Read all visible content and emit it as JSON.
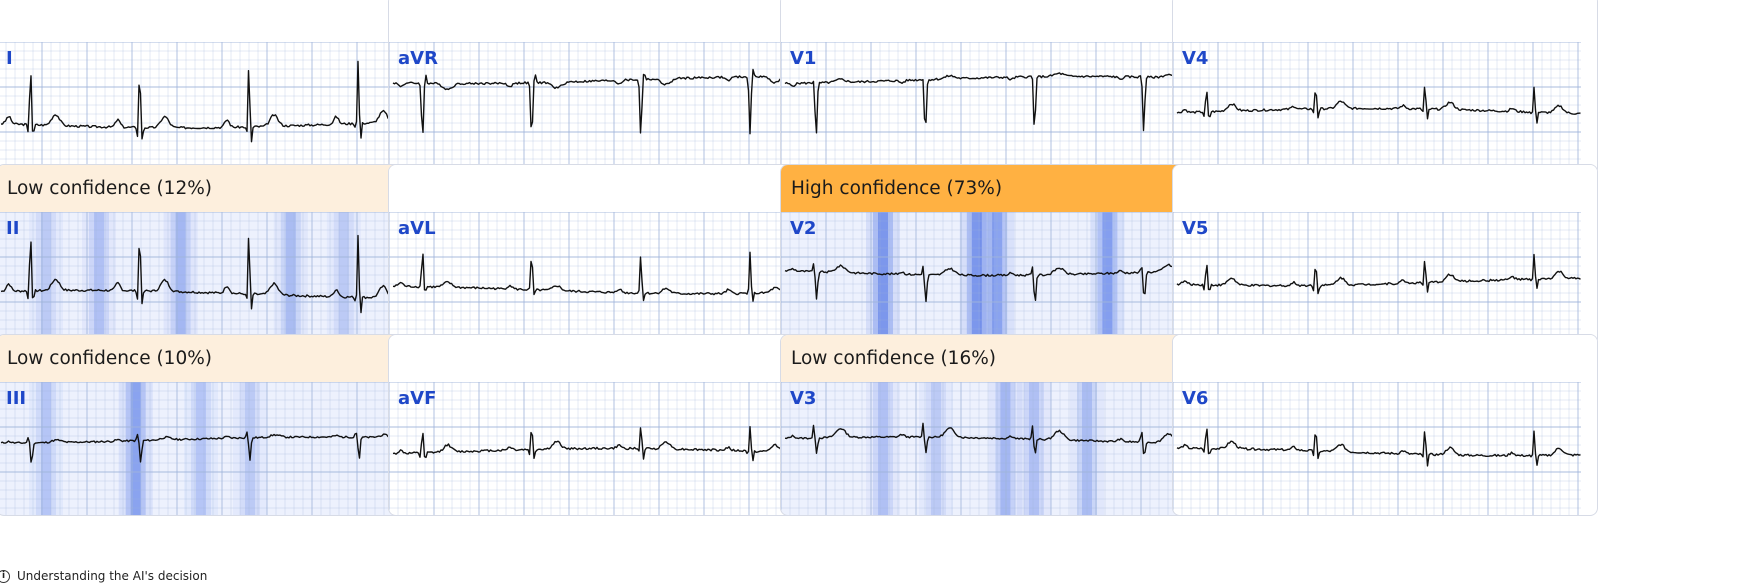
{
  "colors": {
    "low_confidence_bg": "#fdefdd",
    "high_confidence_bg": "#ffb142",
    "grid_line": "#9fb4d9",
    "lead_label": "#1e47c8",
    "trace": "#111111",
    "saliency": "#1f4fe0"
  },
  "panels": [
    {
      "lead": "I",
      "confidence_label": "",
      "confidence_level": "none",
      "wave": "lateral",
      "saliency": []
    },
    {
      "lead": "aVR",
      "confidence_label": "",
      "confidence_level": "none",
      "wave": "avr",
      "saliency": []
    },
    {
      "lead": "V1",
      "confidence_label": "",
      "confidence_level": "none",
      "wave": "v1",
      "saliency": []
    },
    {
      "lead": "V4",
      "confidence_label": "",
      "confidence_level": "none",
      "wave": "small",
      "saliency": []
    },
    {
      "lead": "II",
      "confidence_label": "Low confidence (12%)",
      "confidence_level": "low",
      "wave": "lateral",
      "saliency": [
        [
          0.12,
          0.35
        ],
        [
          0.25,
          0.45
        ],
        [
          0.45,
          0.55
        ],
        [
          0.72,
          0.5
        ],
        [
          0.85,
          0.35
        ]
      ]
    },
    {
      "lead": "aVL",
      "confidence_label": "",
      "confidence_level": "none",
      "wave": "upright",
      "saliency": []
    },
    {
      "lead": "V2",
      "confidence_label": "High confidence (73%)",
      "confidence_level": "high",
      "wave": "v2",
      "saliency": [
        [
          0.25,
          0.95
        ],
        [
          0.48,
          0.95
        ],
        [
          0.53,
          0.8
        ],
        [
          0.8,
          0.85
        ]
      ]
    },
    {
      "lead": "V5",
      "confidence_label": "",
      "confidence_level": "none",
      "wave": "small",
      "saliency": []
    },
    {
      "lead": "III",
      "confidence_label": "Low confidence (10%)",
      "confidence_level": "low",
      "wave": "iii",
      "saliency": [
        [
          0.12,
          0.4
        ],
        [
          0.34,
          0.8
        ],
        [
          0.5,
          0.4
        ],
        [
          0.62,
          0.35
        ]
      ]
    },
    {
      "lead": "aVF",
      "confidence_label": "",
      "confidence_level": "none",
      "wave": "small",
      "saliency": []
    },
    {
      "lead": "V3",
      "confidence_label": "Low confidence (16%)",
      "confidence_level": "low",
      "wave": "v3",
      "saliency": [
        [
          0.25,
          0.45
        ],
        [
          0.38,
          0.35
        ],
        [
          0.55,
          0.55
        ],
        [
          0.62,
          0.45
        ],
        [
          0.75,
          0.5
        ]
      ]
    },
    {
      "lead": "V6",
      "confidence_label": "",
      "confidence_level": "none",
      "wave": "small",
      "saliency": []
    }
  ],
  "footer": {
    "info_icon": "info-icon",
    "text": "Understanding the AI's decision"
  }
}
